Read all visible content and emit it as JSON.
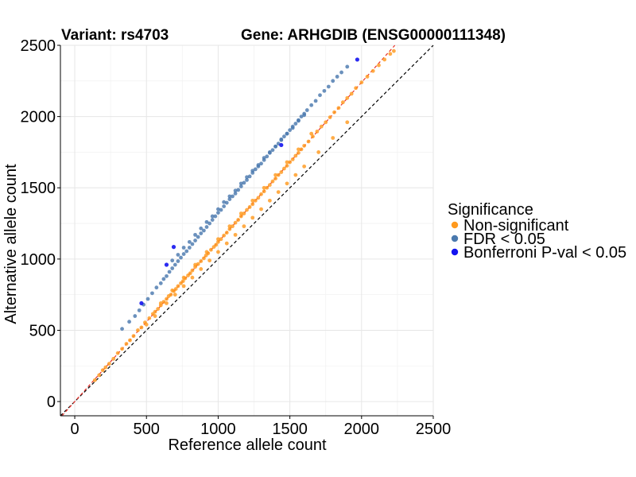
{
  "chart_data": {
    "type": "scatter",
    "title_variant": "Variant: rs4703",
    "title_gene": "Gene: ARHGDIB (ENSG00000111348)",
    "xlabel": "Reference allele count",
    "ylabel": "Alternative allele count",
    "xlim": [
      -100,
      2500
    ],
    "ylim": [
      -100,
      2500
    ],
    "x_ticks": [
      0,
      500,
      1000,
      1500,
      2000,
      2500
    ],
    "y_ticks": [
      0,
      500,
      1000,
      1500,
      2000,
      2500
    ],
    "grid": true,
    "reference_lines": [
      {
        "name": "identity",
        "slope": 1,
        "intercept": 0,
        "color": "#000000",
        "dash": "dashed"
      },
      {
        "name": "fit",
        "slope": 1.12,
        "intercept": 0,
        "color": "#e8312a",
        "dash": "dashed"
      }
    ],
    "legend": {
      "title": "Significance",
      "position": "right",
      "entries": [
        {
          "key": "nonsig",
          "label": "Non-significant",
          "color": "#FF9A1F"
        },
        {
          "key": "fdr",
          "label": "FDR < 0.05",
          "color": "#4A79AE"
        },
        {
          "key": "bonf",
          "label": "Bonferroni P-val < 0.05",
          "color": "#1414F0"
        }
      ]
    },
    "series": [
      {
        "name": "Non-significant",
        "key": "nonsig",
        "color": "#FF9A1F",
        "x": [
          140,
          170,
          195,
          215,
          240,
          270,
          300,
          330,
          360,
          385,
          410,
          440,
          465,
          490,
          520,
          545,
          560,
          580,
          600,
          620,
          640,
          655,
          670,
          690,
          705,
          720,
          740,
          755,
          770,
          790,
          805,
          820,
          840,
          860,
          880,
          900,
          915,
          930,
          950,
          970,
          985,
          1000,
          1020,
          1040,
          1060,
          1080,
          1100,
          1120,
          1140,
          1160,
          1180,
          1200,
          1220,
          1240,
          1260,
          1280,
          1300,
          1320,
          1340,
          1360,
          1380,
          1400,
          1420,
          1440,
          1460,
          1480,
          1500,
          1520,
          1540,
          1560,
          1580,
          1600,
          1630,
          1660,
          1690,
          1720,
          1750,
          1780,
          1810,
          1840,
          1870,
          1900,
          1930,
          1960,
          2000,
          2040,
          2080,
          2120,
          2160,
          2200,
          2225,
          500,
          560,
          640,
          700,
          760,
          820,
          880,
          940,
          1000,
          1060,
          1120,
          1180,
          1240,
          1300,
          1360,
          1420,
          1480,
          1540,
          1600,
          1700,
          1800,
          1900,
          600,
          680,
          760,
          840,
          920,
          1000,
          1080,
          1160,
          1240,
          1320,
          1400,
          1480,
          1560,
          1650
        ],
        "y": [
          150,
          185,
          220,
          240,
          265,
          300,
          340,
          370,
          405,
          430,
          460,
          500,
          520,
          555,
          585,
          615,
          630,
          650,
          675,
          700,
          720,
          740,
          750,
          775,
          790,
          810,
          830,
          845,
          865,
          885,
          900,
          920,
          945,
          965,
          985,
          1005,
          1025,
          1040,
          1065,
          1085,
          1100,
          1120,
          1140,
          1165,
          1185,
          1210,
          1230,
          1255,
          1275,
          1300,
          1320,
          1345,
          1365,
          1385,
          1410,
          1430,
          1455,
          1475,
          1500,
          1520,
          1545,
          1565,
          1590,
          1610,
          1635,
          1655,
          1680,
          1700,
          1725,
          1745,
          1770,
          1795,
          1825,
          1860,
          1895,
          1930,
          1960,
          1995,
          2030,
          2060,
          2100,
          2130,
          2160,
          2200,
          2240,
          2280,
          2320,
          2360,
          2400,
          2440,
          2460,
          540,
          600,
          690,
          750,
          810,
          870,
          930,
          990,
          1050,
          1110,
          1170,
          1230,
          1290,
          1350,
          1410,
          1470,
          1530,
          1590,
          1650,
          1750,
          1850,
          1960,
          690,
          780,
          870,
          960,
          1050,
          1140,
          1230,
          1320,
          1410,
          1500,
          1590,
          1680,
          1770,
          1880
        ]
      },
      {
        "name": "FDR < 0.05",
        "key": "fdr",
        "color": "#4A79AE",
        "x": [
          330,
          380,
          420,
          450,
          480,
          510,
          540,
          570,
          600,
          620,
          640,
          660,
          680,
          700,
          720,
          740,
          760,
          780,
          800,
          820,
          840,
          860,
          880,
          900,
          920,
          940,
          960,
          980,
          1000,
          1020,
          1040,
          1060,
          1080,
          1100,
          1120,
          1140,
          1160,
          1180,
          1200,
          1220,
          1240,
          1260,
          1280,
          1300,
          1320,
          1340,
          1360,
          1380,
          1400,
          1420,
          1440,
          1460,
          1480,
          1500,
          1520,
          1540,
          1560,
          1580,
          1600,
          1620,
          1650,
          1680,
          1710,
          1740,
          1770,
          1800,
          1830,
          1860,
          1900,
          680,
          720,
          760,
          800,
          840,
          880,
          920,
          960,
          1000,
          1040,
          1080,
          1120,
          1160,
          1200,
          1240,
          1280,
          1320,
          1360,
          1400,
          1440,
          1480,
          1520,
          1560,
          1600
        ],
        "y": [
          510,
          560,
          600,
          640,
          680,
          720,
          760,
          800,
          830,
          860,
          880,
          910,
          935,
          960,
          985,
          1010,
          1035,
          1055,
          1080,
          1105,
          1130,
          1155,
          1180,
          1200,
          1225,
          1250,
          1275,
          1300,
          1325,
          1345,
          1370,
          1395,
          1420,
          1440,
          1460,
          1485,
          1510,
          1535,
          1555,
          1580,
          1605,
          1630,
          1650,
          1670,
          1695,
          1720,
          1745,
          1765,
          1790,
          1810,
          1835,
          1860,
          1880,
          1905,
          1930,
          1950,
          1975,
          2000,
          2020,
          2045,
          2080,
          2110,
          2150,
          2180,
          2210,
          2250,
          2280,
          2310,
          2350,
          990,
          1030,
          1080,
          1120,
          1170,
          1215,
          1260,
          1300,
          1350,
          1400,
          1440,
          1480,
          1530,
          1575,
          1620,
          1660,
          1710,
          1750,
          1790,
          1840,
          1880,
          1920,
          1970,
          2010
        ]
      },
      {
        "name": "Bonferroni P-val < 0.05",
        "key": "bonf",
        "color": "#1414F0",
        "x": [
          465,
          640,
          690,
          1440,
          1970
        ],
        "y": [
          690,
          960,
          1085,
          1800,
          2400
        ]
      }
    ]
  }
}
